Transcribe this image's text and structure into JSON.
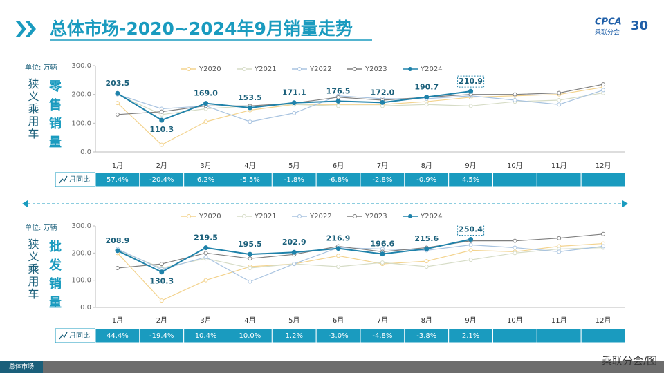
{
  "header": {
    "title": "总体市场-2020~2024年9月销量走势",
    "logo": "CPCA",
    "logo_sub": "乘联分会",
    "anniversary": "30"
  },
  "chart_data": [
    {
      "type": "line",
      "unit_label": "单位: 万辆",
      "side_label": "狭义乘用车",
      "metric_label": "零售销量",
      "legend": "top",
      "grid": false,
      "categories": [
        "1月",
        "2月",
        "3月",
        "4月",
        "5月",
        "6月",
        "7月",
        "8月",
        "9月",
        "10月",
        "11月",
        "12月"
      ],
      "ylim": [
        0,
        300
      ],
      "yticks": [
        {
          "value": 0,
          "label": "0.0"
        },
        {
          "value": 100,
          "label": "100.0"
        },
        {
          "value": 200,
          "label": "200.0"
        },
        {
          "value": 300,
          "label": "300.0"
        }
      ],
      "series": [
        {
          "name": "Y2020",
          "color": "#f3d38e",
          "values": [
            170,
            25,
            105,
            145,
            165,
            165,
            165,
            175,
            190,
            195,
            200,
            225
          ]
        },
        {
          "name": "Y2021",
          "color": "#d6dcc6",
          "values": [
            200,
            130,
            150,
            160,
            165,
            160,
            160,
            165,
            160,
            175,
            180,
            205
          ]
        },
        {
          "name": "Y2022",
          "color": "#a8c3e0",
          "values": [
            200,
            150,
            160,
            105,
            135,
            195,
            185,
            185,
            195,
            180,
            165,
            215
          ]
        },
        {
          "name": "Y2023",
          "color": "#7f7f7f",
          "values": [
            130,
            140,
            160,
            160,
            170,
            190,
            180,
            190,
            200,
            200,
            205,
            235
          ]
        },
        {
          "name": "Y2024",
          "color": "#1f82aa",
          "values": [
            203.5,
            110.3,
            169.0,
            153.5,
            171.1,
            176.5,
            172.0,
            190.7,
            210.9,
            null,
            null,
            null
          ],
          "value_labels": [
            "203.5",
            "110.3",
            "169.0",
            "153.5",
            "171.1",
            "176.5",
            "172.0",
            "190.7",
            "210.9",
            null,
            null,
            null
          ]
        }
      ],
      "yoy": {
        "label": "月同比",
        "values": [
          57.4,
          -20.4,
          6.2,
          -5.5,
          -1.8,
          -6.8,
          -2.8,
          -0.9,
          4.5,
          null,
          null,
          null
        ],
        "value_labels": [
          "57.4%",
          "-20.4%",
          "6.2%",
          "-5.5%",
          "-1.8%",
          "-6.8%",
          "-2.8%",
          "-0.9%",
          "4.5%",
          null,
          null,
          null
        ]
      }
    },
    {
      "type": "line",
      "unit_label": "单位: 万辆",
      "side_label": "狭义乘用车",
      "metric_label": "批发销量",
      "legend": "top",
      "grid": false,
      "categories": [
        "1月",
        "2月",
        "3月",
        "4月",
        "5月",
        "6月",
        "7月",
        "8月",
        "9月",
        "10月",
        "11月",
        "12月"
      ],
      "ylim": [
        0,
        300
      ],
      "yticks": [
        {
          "value": 0,
          "label": "0.0"
        },
        {
          "value": 100,
          "label": "100.0"
        },
        {
          "value": 200,
          "label": "200.0"
        },
        {
          "value": 300,
          "label": "300.0"
        }
      ],
      "series": [
        {
          "name": "Y2020",
          "color": "#f3d38e",
          "values": [
            200,
            25,
            100,
            150,
            160,
            190,
            160,
            170,
            210,
            205,
            225,
            235
          ]
        },
        {
          "name": "Y2021",
          "color": "#d6dcc6",
          "values": [
            210,
            145,
            180,
            145,
            160,
            150,
            165,
            150,
            175,
            200,
            215,
            220
          ]
        },
        {
          "name": "Y2022",
          "color": "#a8c3e0",
          "values": [
            215,
            140,
            185,
            95,
            160,
            220,
            215,
            210,
            230,
            220,
            205,
            225
          ]
        },
        {
          "name": "Y2023",
          "color": "#7f7f7f",
          "values": [
            145,
            160,
            200,
            180,
            195,
            225,
            205,
            220,
            245,
            245,
            255,
            270
          ]
        },
        {
          "name": "Y2024",
          "color": "#1f82aa",
          "values": [
            208.9,
            130.3,
            219.5,
            195.5,
            202.9,
            216.9,
            196.6,
            215.6,
            250.4,
            null,
            null,
            null
          ],
          "value_labels": [
            "208.9",
            "130.3",
            "219.5",
            "195.5",
            "202.9",
            "216.9",
            "196.6",
            "215.6",
            "250.4",
            null,
            null,
            null
          ]
        }
      ],
      "yoy": {
        "label": "月同比",
        "values": [
          44.4,
          -19.4,
          10.4,
          10.0,
          1.2,
          -3.0,
          -4.8,
          -3.8,
          2.1,
          null,
          null,
          null
        ],
        "value_labels": [
          "44.4%",
          "-19.4%",
          "10.4%",
          "10.0%",
          "1.2%",
          "-3.0%",
          "-4.8%",
          "-3.8%",
          "2.1%",
          null,
          null,
          null
        ]
      }
    }
  ],
  "footer": {
    "tab": "总体市场",
    "credit": "乘联分会/图"
  }
}
